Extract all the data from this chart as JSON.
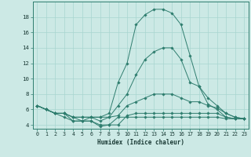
{
  "x": [
    0,
    1,
    2,
    3,
    4,
    5,
    6,
    7,
    8,
    9,
    10,
    11,
    12,
    13,
    14,
    15,
    16,
    17,
    18,
    19,
    20,
    21,
    22,
    23
  ],
  "curve_max": [
    6.5,
    6.0,
    5.5,
    5.5,
    4.5,
    4.5,
    5.0,
    5.0,
    5.5,
    9.5,
    12.0,
    17.0,
    18.3,
    19.0,
    19.0,
    18.5,
    17.0,
    13.0,
    9.0,
    6.7,
    6.0,
    5.0,
    4.8,
    4.8
  ],
  "curve_q3": [
    6.5,
    6.0,
    5.5,
    5.5,
    5.0,
    5.0,
    5.0,
    5.0,
    5.0,
    6.5,
    8.0,
    10.5,
    12.5,
    13.5,
    14.0,
    14.0,
    12.5,
    9.5,
    9.0,
    7.5,
    6.5,
    5.5,
    5.0,
    4.8
  ],
  "curve_med": [
    6.5,
    6.0,
    5.5,
    5.5,
    5.0,
    5.0,
    5.0,
    4.5,
    5.0,
    5.2,
    6.5,
    7.0,
    7.5,
    8.0,
    8.0,
    8.0,
    7.5,
    7.0,
    7.0,
    6.5,
    6.2,
    5.5,
    5.0,
    4.8
  ],
  "curve_q1": [
    6.5,
    6.0,
    5.5,
    5.5,
    5.0,
    4.5,
    4.5,
    4.0,
    4.0,
    4.0,
    5.2,
    5.5,
    5.5,
    5.5,
    5.5,
    5.5,
    5.5,
    5.5,
    5.5,
    5.5,
    5.5,
    5.0,
    4.8,
    4.8
  ],
  "curve_min": [
    6.5,
    6.0,
    5.5,
    5.0,
    4.5,
    4.5,
    4.5,
    3.8,
    4.0,
    5.0,
    5.0,
    5.0,
    5.0,
    5.0,
    5.0,
    5.0,
    5.0,
    5.0,
    5.0,
    5.0,
    5.0,
    4.8,
    4.8,
    4.8
  ],
  "bg_color": "#cce9e5",
  "grid_color": "#a8d5d0",
  "line_color": "#2e7d6e",
  "xlabel": "Humidex (Indice chaleur)",
  "xlim": [
    -0.5,
    23.5
  ],
  "ylim": [
    3.5,
    20.0
  ],
  "yticks": [
    4,
    6,
    8,
    10,
    12,
    14,
    16,
    18
  ],
  "xticks": [
    0,
    1,
    2,
    3,
    4,
    5,
    6,
    7,
    8,
    9,
    10,
    11,
    12,
    13,
    14,
    15,
    16,
    17,
    18,
    19,
    20,
    21,
    22,
    23
  ],
  "xlabel_fontsize": 5.5,
  "tick_fontsize": 4.8,
  "linewidth": 0.7,
  "markersize": 1.8
}
